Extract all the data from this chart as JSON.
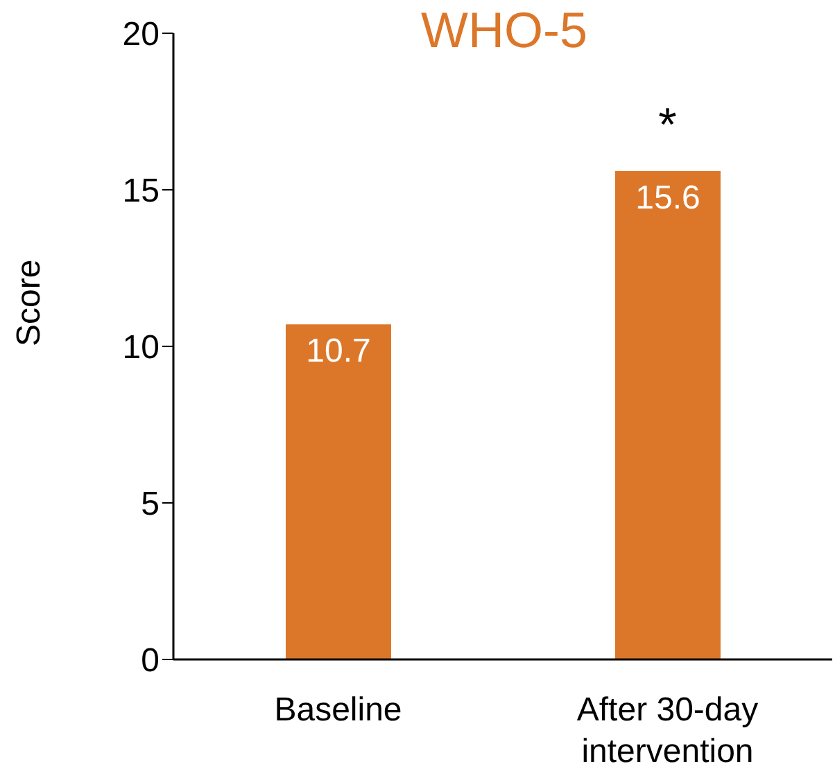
{
  "chart_data": {
    "type": "bar",
    "title": "WHO-5",
    "ylabel": "Score",
    "categories": [
      "Baseline",
      "After 30-day intervention"
    ],
    "values": [
      10.7,
      15.6
    ],
    "color": "#dc772a",
    "data_labels": true,
    "ylim": [
      0,
      20
    ],
    "yticks": [
      0,
      5,
      10,
      15,
      20
    ],
    "grid": false,
    "legend": false,
    "annotations": [
      {
        "text": "*",
        "x": "After 30-day intervention",
        "y": 15.6
      }
    ]
  }
}
